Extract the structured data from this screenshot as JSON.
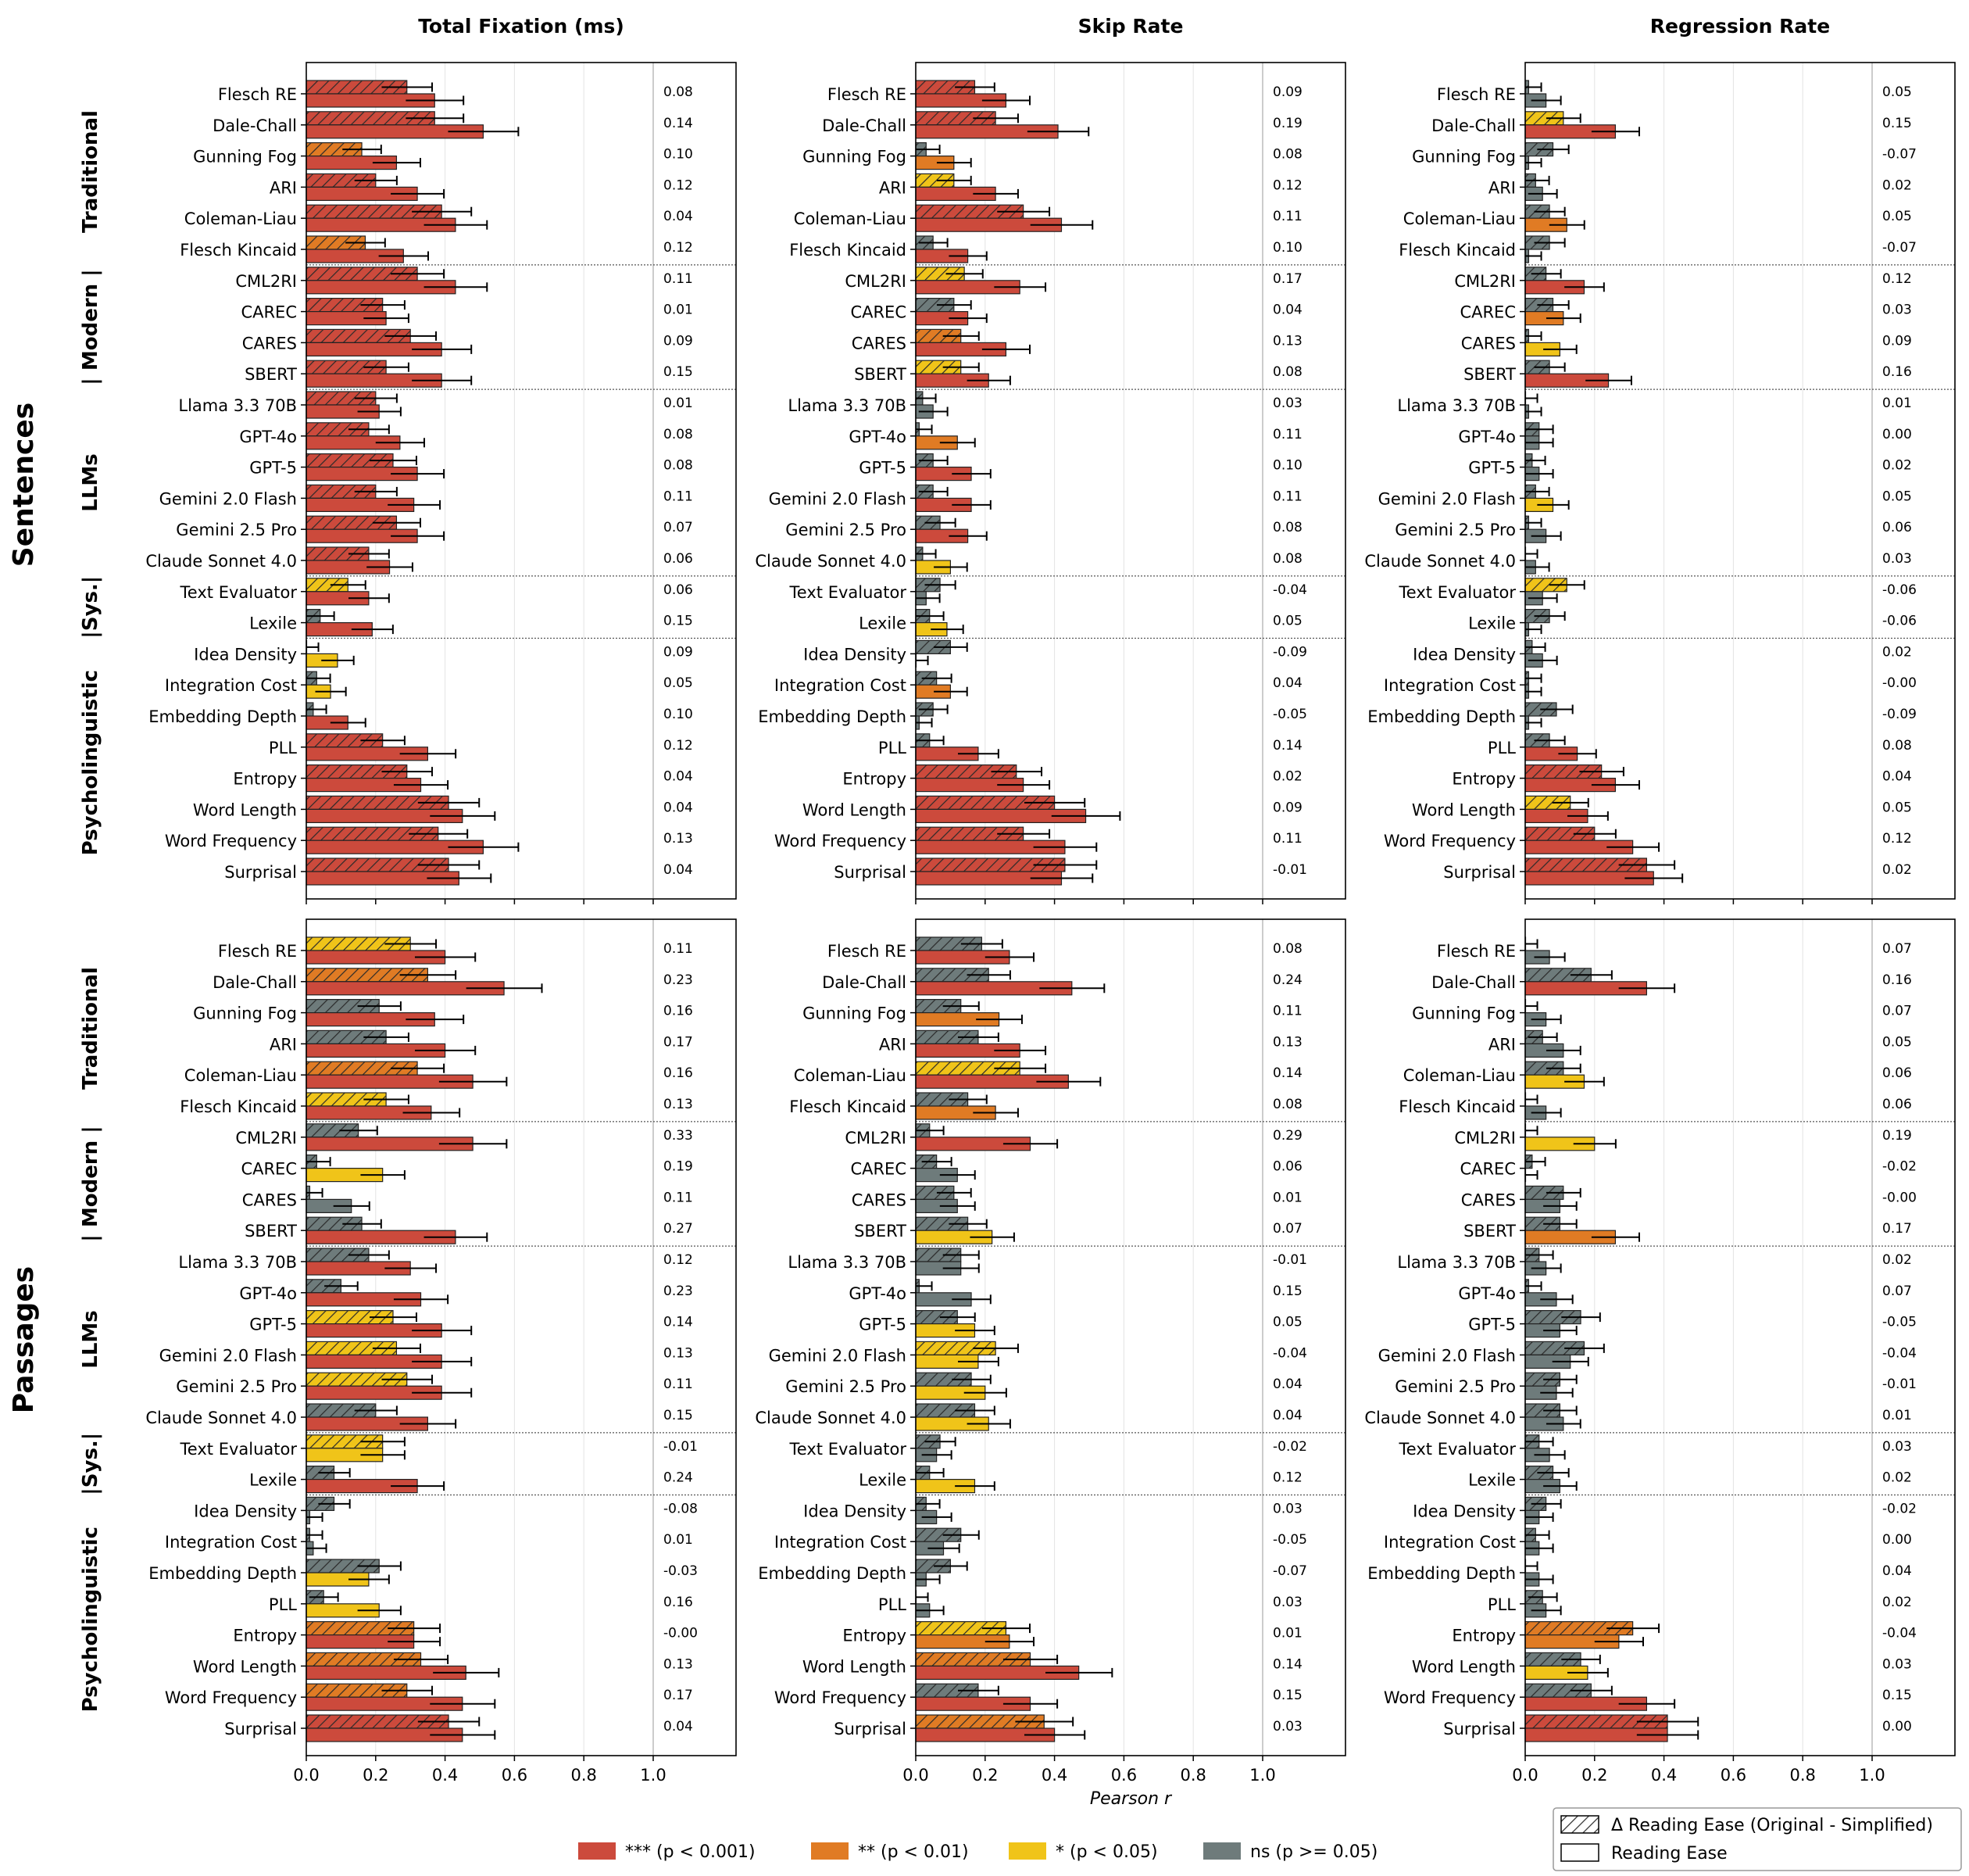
{
  "colors": {
    "sig3": "#cc4a3c",
    "sig2": "#e07b24",
    "sig1": "#f0c419",
    "ns": "#6e7b7b"
  },
  "row_groups": {
    "sentences": "Sentences",
    "passages": "Passages"
  },
  "groups": [
    {
      "label": "Traditional",
      "start": 0,
      "end": 5
    },
    {
      "label": "| Modern |",
      "start": 6,
      "end": 9
    },
    {
      "label": "LLMs",
      "start": 10,
      "end": 15
    },
    {
      "label": "|Sys.|",
      "start": 16,
      "end": 17
    },
    {
      "label": "Psycholinguistic",
      "start": 18,
      "end": 25
    }
  ],
  "features": [
    "Flesch RE",
    "Dale-Chall",
    "Gunning Fog",
    "ARI",
    "Coleman-Liau",
    "Flesch Kincaid",
    "CML2RI",
    "CAREC",
    "CARES",
    "SBERT",
    "Llama 3.3 70B",
    "GPT-4o",
    "GPT-5",
    "Gemini 2.0 Flash",
    "Gemini 2.5 Pro",
    "Claude Sonnet 4.0",
    "Text Evaluator",
    "Lexile",
    "Idea Density",
    "Integration Cost",
    "Embedding Depth",
    "PLL",
    "Entropy",
    "Word Length",
    "Word Frequency",
    "Surprisal"
  ],
  "legend": {
    "sig3": "*** (p < 0.001)",
    "sig2": "** (p < 0.01)",
    "sig1": "* (p < 0.05)",
    "ns": "ns (p >= 0.05)",
    "delta": "Δ Reading Ease (Original - Simplified)",
    "ease": "Reading Ease"
  },
  "chart_data": [
    {
      "type": "bar",
      "row": "Sentences",
      "title": "Total Fixation (ms)",
      "xlabel": "",
      "xlim": [
        0,
        1.2
      ],
      "xticks": [
        "0.0",
        "0.2",
        "0.4",
        "0.6",
        "0.8",
        "1.0"
      ],
      "delta": [
        0.29,
        0.37,
        0.16,
        0.2,
        0.39,
        0.17,
        0.32,
        0.22,
        0.3,
        0.23,
        0.2,
        0.18,
        0.25,
        0.2,
        0.26,
        0.18,
        0.12,
        0.04,
        0.0,
        0.03,
        0.02,
        0.22,
        0.29,
        0.41,
        0.38,
        0.41
      ],
      "delta_sig": [
        "sig3",
        "sig3",
        "sig2",
        "sig3",
        "sig3",
        "sig2",
        "sig3",
        "sig3",
        "sig3",
        "sig3",
        "sig3",
        "sig3",
        "sig3",
        "sig3",
        "sig3",
        "sig3",
        "sig1",
        "ns",
        "ns",
        "ns",
        "ns",
        "sig3",
        "sig3",
        "sig3",
        "sig3",
        "sig3"
      ],
      "ease": [
        0.37,
        0.51,
        0.26,
        0.32,
        0.43,
        0.28,
        0.43,
        0.23,
        0.39,
        0.39,
        0.21,
        0.27,
        0.32,
        0.31,
        0.32,
        0.24,
        0.18,
        0.19,
        0.09,
        0.07,
        0.12,
        0.35,
        0.33,
        0.45,
        0.51,
        0.44
      ],
      "ease_sig": [
        "sig3",
        "sig3",
        "sig3",
        "sig3",
        "sig3",
        "sig3",
        "sig3",
        "sig3",
        "sig3",
        "sig3",
        "sig3",
        "sig3",
        "sig3",
        "sig3",
        "sig3",
        "sig3",
        "sig3",
        "sig3",
        "sig1",
        "sig1",
        "sig3",
        "sig3",
        "sig3",
        "sig3",
        "sig3",
        "sig3"
      ],
      "diff": [
        "0.08",
        "0.14",
        "0.10",
        "0.12",
        "0.04",
        "0.12",
        "0.11",
        "0.01",
        "0.09",
        "0.15",
        "0.01",
        "0.08",
        "0.08",
        "0.11",
        "0.07",
        "0.06",
        "0.06",
        "0.15",
        "0.09",
        "0.05",
        "0.10",
        "0.12",
        "0.04",
        "0.04",
        "0.13",
        "0.04"
      ]
    },
    {
      "type": "bar",
      "row": "Sentences",
      "title": "Skip Rate",
      "xlabel": "",
      "xlim": [
        0,
        1.2
      ],
      "xticks": [
        "0.0",
        "0.2",
        "0.4",
        "0.6",
        "0.8",
        "1.0"
      ],
      "delta": [
        0.17,
        0.23,
        0.03,
        0.11,
        0.31,
        0.05,
        0.14,
        0.11,
        0.13,
        0.13,
        0.02,
        0.01,
        0.05,
        0.05,
        0.07,
        0.02,
        0.07,
        0.04,
        0.1,
        0.06,
        0.05,
        0.04,
        0.29,
        0.4,
        0.31,
        0.43
      ],
      "delta_sig": [
        "sig3",
        "sig3",
        "ns",
        "sig1",
        "sig3",
        "ns",
        "sig1",
        "ns",
        "sig2",
        "sig1",
        "ns",
        "ns",
        "ns",
        "ns",
        "ns",
        "ns",
        "ns",
        "ns",
        "ns",
        "ns",
        "ns",
        "ns",
        "sig3",
        "sig3",
        "sig3",
        "sig3"
      ],
      "ease": [
        0.26,
        0.41,
        0.11,
        0.23,
        0.42,
        0.15,
        0.3,
        0.15,
        0.26,
        0.21,
        0.05,
        0.12,
        0.16,
        0.16,
        0.15,
        0.1,
        0.03,
        0.09,
        0.0,
        0.1,
        0.01,
        0.18,
        0.31,
        0.49,
        0.43,
        0.42
      ],
      "ease_sig": [
        "sig3",
        "sig3",
        "sig2",
        "sig3",
        "sig3",
        "sig3",
        "sig3",
        "sig3",
        "sig3",
        "sig3",
        "ns",
        "sig2",
        "sig3",
        "sig3",
        "sig3",
        "sig1",
        "ns",
        "sig1",
        "ns",
        "sig2",
        "ns",
        "sig3",
        "sig3",
        "sig3",
        "sig3",
        "sig3"
      ],
      "diff": [
        "0.09",
        "0.19",
        "0.08",
        "0.12",
        "0.11",
        "0.10",
        "0.17",
        "0.04",
        "0.13",
        "0.08",
        "0.03",
        "0.11",
        "0.10",
        "0.11",
        "0.08",
        "0.08",
        "-0.04",
        "0.05",
        "-0.09",
        "0.04",
        "-0.05",
        "0.14",
        "0.02",
        "0.09",
        "0.11",
        "-0.01"
      ]
    },
    {
      "type": "bar",
      "row": "Sentences",
      "title": "Regression Rate",
      "xlabel": "",
      "xlim": [
        0,
        1.2
      ],
      "xticks": [
        "0.0",
        "0.2",
        "0.4",
        "0.6",
        "0.8",
        "1.0"
      ],
      "delta": [
        0.01,
        0.11,
        0.08,
        0.03,
        0.07,
        0.07,
        0.06,
        0.08,
        0.01,
        0.07,
        0.0,
        0.04,
        0.02,
        0.03,
        0.01,
        0.0,
        0.12,
        0.07,
        0.02,
        0.01,
        0.09,
        0.07,
        0.22,
        0.13,
        0.2,
        0.35
      ],
      "delta_sig": [
        "ns",
        "sig1",
        "ns",
        "ns",
        "ns",
        "ns",
        "ns",
        "ns",
        "ns",
        "ns",
        "ns",
        "ns",
        "ns",
        "ns",
        "ns",
        "ns",
        "sig1",
        "ns",
        "ns",
        "ns",
        "ns",
        "ns",
        "sig3",
        "sig1",
        "sig3",
        "sig3"
      ],
      "ease": [
        0.06,
        0.26,
        0.01,
        0.05,
        0.12,
        0.01,
        0.17,
        0.11,
        0.1,
        0.24,
        0.01,
        0.04,
        0.04,
        0.08,
        0.06,
        0.03,
        0.05,
        0.01,
        0.05,
        0.01,
        0.01,
        0.15,
        0.26,
        0.18,
        0.31,
        0.37
      ],
      "ease_sig": [
        "ns",
        "sig3",
        "ns",
        "ns",
        "sig2",
        "ns",
        "sig3",
        "sig2",
        "sig1",
        "sig3",
        "ns",
        "ns",
        "ns",
        "sig1",
        "ns",
        "ns",
        "ns",
        "ns",
        "ns",
        "ns",
        "ns",
        "sig3",
        "sig3",
        "sig3",
        "sig3",
        "sig3"
      ],
      "diff": [
        "0.05",
        "0.15",
        "-0.07",
        "0.02",
        "0.05",
        "-0.07",
        "0.12",
        "0.03",
        "0.09",
        "0.16",
        "0.01",
        "0.00",
        "0.02",
        "0.05",
        "0.06",
        "0.03",
        "-0.06",
        "-0.06",
        "0.02",
        "-0.00",
        "-0.09",
        "0.08",
        "0.04",
        "0.05",
        "0.12",
        "0.02"
      ]
    },
    {
      "type": "bar",
      "row": "Passages",
      "title": "",
      "xlabel": "",
      "xlim": [
        0,
        1.2
      ],
      "xticks": [
        "0.0",
        "0.2",
        "0.4",
        "0.6",
        "0.8",
        "1.0"
      ],
      "delta": [
        0.3,
        0.35,
        0.21,
        0.23,
        0.32,
        0.23,
        0.15,
        0.03,
        0.01,
        0.16,
        0.18,
        0.1,
        0.25,
        0.26,
        0.29,
        0.2,
        0.22,
        0.08,
        0.08,
        0.01,
        0.21,
        0.05,
        0.31,
        0.33,
        0.29,
        0.41
      ],
      "delta_sig": [
        "sig1",
        "sig2",
        "ns",
        "ns",
        "sig2",
        "sig1",
        "ns",
        "ns",
        "ns",
        "ns",
        "ns",
        "ns",
        "sig1",
        "sig1",
        "sig1",
        "ns",
        "sig1",
        "ns",
        "ns",
        "ns",
        "ns",
        "ns",
        "sig2",
        "sig2",
        "sig2",
        "sig3"
      ],
      "ease": [
        0.4,
        0.57,
        0.37,
        0.4,
        0.48,
        0.36,
        0.48,
        0.22,
        0.13,
        0.43,
        0.3,
        0.33,
        0.39,
        0.39,
        0.39,
        0.35,
        0.22,
        0.32,
        0.01,
        0.02,
        0.18,
        0.21,
        0.31,
        0.46,
        0.45,
        0.45
      ],
      "ease_sig": [
        "sig3",
        "sig3",
        "sig3",
        "sig3",
        "sig3",
        "sig3",
        "sig3",
        "sig1",
        "ns",
        "sig3",
        "sig3",
        "sig3",
        "sig3",
        "sig3",
        "sig3",
        "sig3",
        "sig1",
        "sig3",
        "ns",
        "ns",
        "sig1",
        "sig1",
        "sig3",
        "sig3",
        "sig3",
        "sig3"
      ],
      "diff": [
        "0.11",
        "0.23",
        "0.16",
        "0.17",
        "0.16",
        "0.13",
        "0.33",
        "0.19",
        "0.11",
        "0.27",
        "0.12",
        "0.23",
        "0.14",
        "0.13",
        "0.11",
        "0.15",
        "-0.01",
        "0.24",
        "-0.08",
        "0.01",
        "-0.03",
        "0.16",
        "-0.00",
        "0.13",
        "0.17",
        "0.04"
      ]
    },
    {
      "type": "bar",
      "row": "Passages",
      "title": "",
      "xlabel": "Pearson r",
      "xlim": [
        0,
        1.2
      ],
      "xticks": [
        "0.0",
        "0.2",
        "0.4",
        "0.6",
        "0.8",
        "1.0"
      ],
      "delta": [
        0.19,
        0.21,
        0.13,
        0.18,
        0.3,
        0.15,
        0.04,
        0.06,
        0.11,
        0.15,
        0.13,
        0.01,
        0.12,
        0.23,
        0.16,
        0.17,
        0.07,
        0.04,
        0.03,
        0.13,
        0.1,
        0.0,
        0.26,
        0.33,
        0.18,
        0.37
      ],
      "delta_sig": [
        "ns",
        "ns",
        "ns",
        "ns",
        "sig1",
        "ns",
        "ns",
        "ns",
        "ns",
        "ns",
        "ns",
        "ns",
        "ns",
        "sig1",
        "ns",
        "ns",
        "ns",
        "ns",
        "ns",
        "ns",
        "ns",
        "ns",
        "sig1",
        "sig2",
        "ns",
        "sig2"
      ],
      "ease": [
        0.27,
        0.45,
        0.24,
        0.3,
        0.44,
        0.23,
        0.33,
        0.12,
        0.12,
        0.22,
        0.13,
        0.16,
        0.17,
        0.18,
        0.2,
        0.21,
        0.06,
        0.17,
        0.06,
        0.08,
        0.03,
        0.04,
        0.27,
        0.47,
        0.33,
        0.4
      ],
      "ease_sig": [
        "sig3",
        "sig3",
        "sig2",
        "sig3",
        "sig3",
        "sig2",
        "sig3",
        "ns",
        "ns",
        "sig1",
        "ns",
        "ns",
        "sig1",
        "sig1",
        "sig1",
        "sig1",
        "ns",
        "sig1",
        "ns",
        "ns",
        "ns",
        "ns",
        "sig2",
        "sig3",
        "sig3",
        "sig3"
      ],
      "diff": [
        "0.08",
        "0.24",
        "0.11",
        "0.13",
        "0.14",
        "0.08",
        "0.29",
        "0.06",
        "0.01",
        "0.07",
        "-0.01",
        "0.15",
        "0.05",
        "-0.04",
        "0.04",
        "0.04",
        "-0.02",
        "0.12",
        "0.03",
        "-0.05",
        "-0.07",
        "0.03",
        "0.01",
        "0.14",
        "0.15",
        "0.03"
      ]
    },
    {
      "type": "bar",
      "row": "Passages",
      "title": "",
      "xlabel": "",
      "xlim": [
        0,
        1.2
      ],
      "xticks": [
        "0.0",
        "0.2",
        "0.4",
        "0.6",
        "0.8",
        "1.0"
      ],
      "delta": [
        0.0,
        0.19,
        0.0,
        0.05,
        0.11,
        0.0,
        0.0,
        0.02,
        0.11,
        0.1,
        0.04,
        0.01,
        0.16,
        0.17,
        0.1,
        0.1,
        0.04,
        0.08,
        0.06,
        0.03,
        0.0,
        0.05,
        0.31,
        0.16,
        0.19,
        0.41
      ],
      "delta_sig": [
        "ns",
        "ns",
        "ns",
        "ns",
        "ns",
        "ns",
        "ns",
        "ns",
        "ns",
        "ns",
        "ns",
        "ns",
        "ns",
        "ns",
        "ns",
        "ns",
        "ns",
        "ns",
        "ns",
        "ns",
        "ns",
        "ns",
        "sig2",
        "ns",
        "ns",
        "sig3"
      ],
      "ease": [
        0.07,
        0.35,
        0.06,
        0.11,
        0.17,
        0.06,
        0.2,
        0.0,
        0.1,
        0.26,
        0.06,
        0.09,
        0.1,
        0.13,
        0.09,
        0.11,
        0.07,
        0.1,
        0.04,
        0.04,
        0.04,
        0.06,
        0.27,
        0.18,
        0.35,
        0.41
      ],
      "ease_sig": [
        "ns",
        "sig3",
        "ns",
        "ns",
        "sig1",
        "ns",
        "sig1",
        "ns",
        "ns",
        "sig2",
        "ns",
        "ns",
        "ns",
        "ns",
        "ns",
        "ns",
        "ns",
        "ns",
        "ns",
        "ns",
        "ns",
        "ns",
        "sig2",
        "sig1",
        "sig3",
        "sig3"
      ],
      "diff": [
        "0.07",
        "0.16",
        "0.07",
        "0.05",
        "0.06",
        "0.06",
        "0.19",
        "-0.02",
        "-0.00",
        "0.17",
        "0.02",
        "0.07",
        "-0.05",
        "-0.04",
        "-0.01",
        "0.01",
        "0.03",
        "0.02",
        "-0.02",
        "0.00",
        "0.04",
        "0.02",
        "-0.04",
        "0.03",
        "0.15",
        "0.00"
      ]
    }
  ]
}
